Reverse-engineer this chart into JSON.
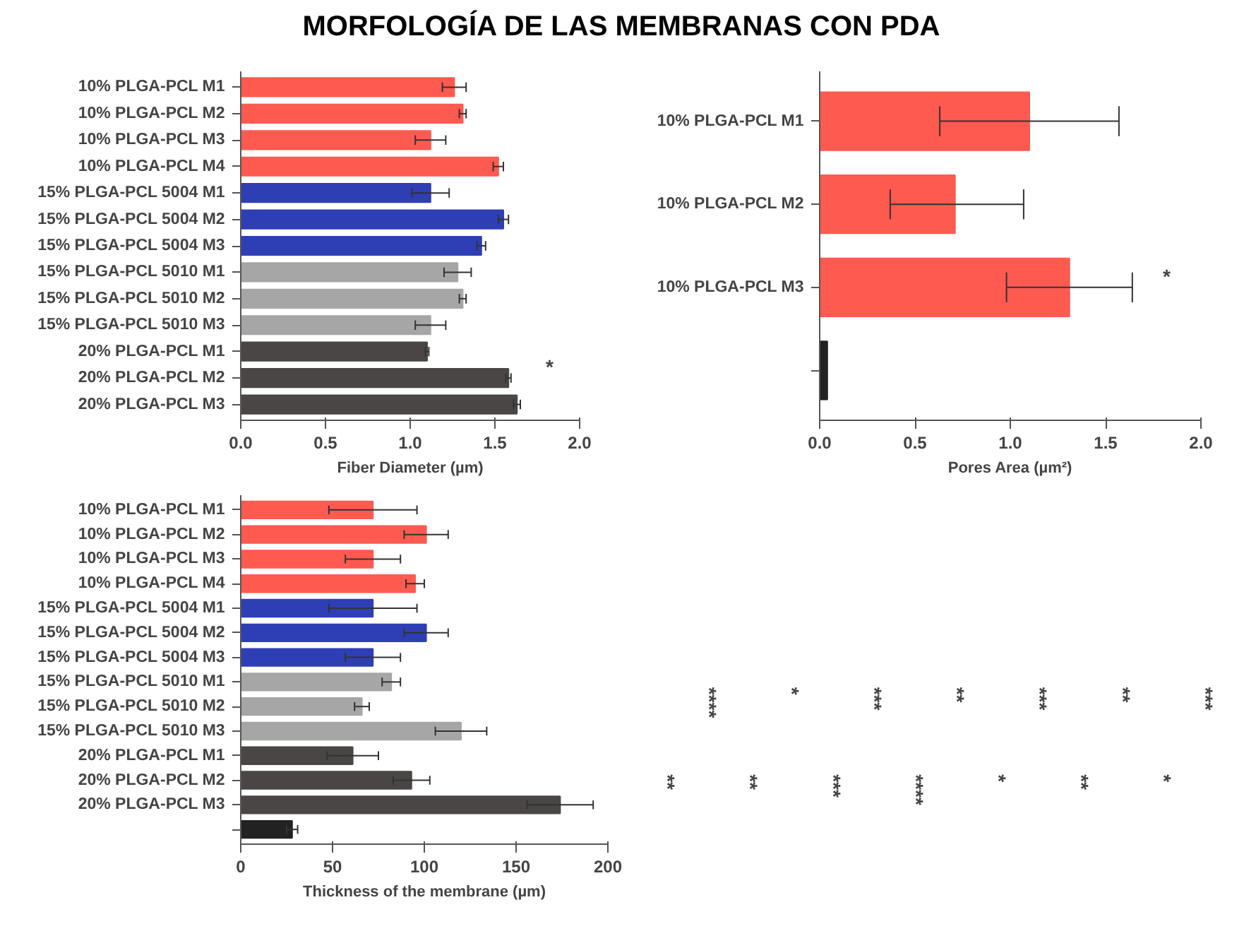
{
  "chart_data": [
    {
      "type": "bar",
      "orientation": "horizontal",
      "title": "MORFOLOGÍA DE LAS MEMBRANAS CON PDA",
      "xlabel": "Fiber Diameter (µm)",
      "categories": [
        "10% PLGA-PCL M1",
        "10% PLGA-PCL M2",
        "10% PLGA-PCL M3",
        "10% PLGA-PCL M4",
        "15% PLGA-PCL 5004 M1",
        "15% PLGA-PCL 5004 M2",
        "15% PLGA-PCL 5004 M3",
        "15% PLGA-PCL 5010 M1",
        "15% PLGA-PCL 5010 M2",
        "15% PLGA-PCL 5010 M3",
        "20% PLGA-PCL M1",
        "20% PLGA-PCL M2",
        "20% PLGA-PCL M3"
      ],
      "values": [
        1.26,
        1.31,
        1.12,
        1.52,
        1.12,
        1.55,
        1.42,
        1.28,
        1.31,
        1.12,
        1.1,
        1.58,
        1.63
      ],
      "errors": [
        0.07,
        0.02,
        0.09,
        0.03,
        0.11,
        0.03,
        0.025,
        0.08,
        0.02,
        0.09,
        0.01,
        0.015,
        0.02
      ],
      "colors": [
        "#ff5a50",
        "#ff5a50",
        "#ff5a50",
        "#ff5a50",
        "#2e3fb5",
        "#2e3fb5",
        "#2e3fb5",
        "#a6a6a6",
        "#a6a6a6",
        "#a6a6a6",
        "#4a4646",
        "#4a4646",
        "#4a4646"
      ],
      "xlim": [
        0,
        2
      ],
      "xticks": [
        {
          "value": 0,
          "label": "0.0"
        },
        0.5,
        {
          "value": 1,
          "label": "1.0"
        },
        1.5,
        {
          "value": 2,
          "label": "2.0"
        }
      ],
      "annotations": [
        "*"
      ],
      "grid": false
    },
    {
      "type": "bar",
      "orientation": "horizontal",
      "xlabel": "Pores Area (µm²)",
      "categories": [
        "10% PLGA-PCL M1",
        "10% PLGA-PCL M2",
        "10% PLGA-PCL M3",
        null
      ],
      "values": [
        1.1,
        0.71,
        1.31,
        0.04
      ],
      "errors": [
        [
          0.63,
          1.57
        ],
        [
          0.37,
          1.07
        ],
        [
          0.98,
          1.64
        ],
        null
      ],
      "colors": [
        "#ff5a50",
        "#ff5a50",
        "#ff5a50",
        "#222222"
      ],
      "xlim": [
        0,
        2
      ],
      "xticks": [
        {
          "value": 0,
          "label": "0.0"
        },
        0.5,
        {
          "value": 1,
          "label": "1.0"
        },
        1.5,
        {
          "value": 2,
          "label": "2.0"
        }
      ],
      "annotations": [
        "*"
      ],
      "grid": false
    },
    {
      "type": "bar",
      "orientation": "horizontal",
      "xlabel": "Thickness of the membrane (µm)",
      "categories": [
        "10% PLGA-PCL M1",
        "10% PLGA-PCL M2",
        "10% PLGA-PCL M3",
        "10% PLGA-PCL M4",
        "15% PLGA-PCL 5004 M1",
        "15% PLGA-PCL 5004 M2",
        "15% PLGA-PCL 5004 M3",
        "15% PLGA-PCL 5010 M1",
        "15% PLGA-PCL 5010 M2",
        "15% PLGA-PCL 5010 M3",
        "20% PLGA-PCL M1",
        "20% PLGA-PCL M2",
        "20% PLGA-PCL M3",
        null
      ],
      "values": [
        72,
        101,
        72,
        95,
        72,
        101,
        72,
        82,
        66,
        120,
        61,
        93,
        174,
        28
      ],
      "errors": [
        24,
        12,
        15,
        5,
        24,
        12,
        15,
        5,
        4,
        14,
        14,
        10,
        18,
        3
      ],
      "colors": [
        "#ff5a50",
        "#ff5a50",
        "#ff5a50",
        "#ff5a50",
        "#2e3fb5",
        "#2e3fb5",
        "#2e3fb5",
        "#a6a6a6",
        "#a6a6a6",
        "#a6a6a6",
        "#4a4646",
        "#4a4646",
        "#4a4646",
        "#222222"
      ],
      "xlim": [
        0,
        200
      ],
      "xticks": [
        0,
        50,
        100,
        150,
        200
      ],
      "annotations": [
        "**",
        "****",
        "**",
        "*",
        "***",
        "***",
        "****",
        "**",
        "*",
        "***",
        "**",
        "**",
        "*",
        "***"
      ],
      "grid": false
    }
  ]
}
